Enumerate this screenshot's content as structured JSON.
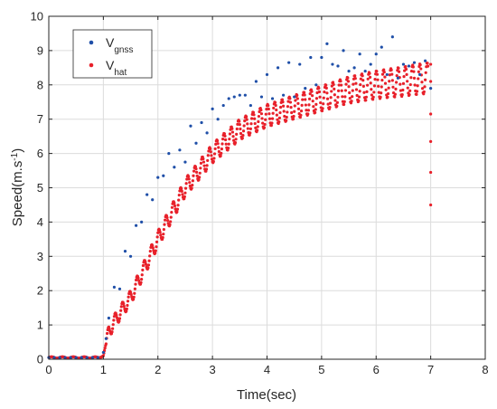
{
  "chart_data": {
    "type": "scatter",
    "title": "",
    "xlabel": "Time(sec)",
    "ylabel": {
      "base": "Speed(m.s",
      "sup": "-1",
      "close": ")"
    },
    "xlim": [
      0,
      8
    ],
    "ylim": [
      0,
      10
    ],
    "xticks": [
      "0",
      "1",
      "2",
      "3",
      "4",
      "5",
      "6",
      "7",
      "8"
    ],
    "yticks": [
      "0",
      "1",
      "2",
      "3",
      "4",
      "5",
      "6",
      "7",
      "8",
      "9",
      "10"
    ],
    "grid": true,
    "legend_position": "top-left",
    "series": [
      {
        "name": "V_gnss",
        "legend_main": "V",
        "legend_sub": "gnss",
        "color": "#1f4fa8",
        "x": [
          0.0,
          0.1,
          0.2,
          0.3,
          0.4,
          0.5,
          0.6,
          0.7,
          0.8,
          0.9,
          1.0,
          1.05,
          1.1,
          1.2,
          1.3,
          1.4,
          1.5,
          1.6,
          1.7,
          1.8,
          1.9,
          2.0,
          2.1,
          2.2,
          2.3,
          2.4,
          2.5,
          2.6,
          2.7,
          2.8,
          2.9,
          3.0,
          3.1,
          3.2,
          3.3,
          3.4,
          3.5,
          3.6,
          3.7,
          3.8,
          3.9,
          4.0,
          4.1,
          4.2,
          4.3,
          4.4,
          4.5,
          4.6,
          4.7,
          4.8,
          4.9,
          5.0,
          5.1,
          5.2,
          5.3,
          5.4,
          5.5,
          5.6,
          5.7,
          5.8,
          5.9,
          6.0,
          6.1,
          6.2,
          6.3,
          6.4,
          6.5,
          6.6,
          6.7,
          6.8,
          6.9,
          7.0
        ],
        "y": [
          0.05,
          0.05,
          0.05,
          0.05,
          0.05,
          0.05,
          0.05,
          0.05,
          0.05,
          0.05,
          0.2,
          0.6,
          1.2,
          2.1,
          2.05,
          3.15,
          3.0,
          3.9,
          4.0,
          4.8,
          4.65,
          5.3,
          5.35,
          6.0,
          5.6,
          6.1,
          5.75,
          6.8,
          6.3,
          6.9,
          6.6,
          7.3,
          7.0,
          7.4,
          7.6,
          7.65,
          7.7,
          7.7,
          7.4,
          8.1,
          7.65,
          8.3,
          7.6,
          8.5,
          7.7,
          8.65,
          7.65,
          8.6,
          7.9,
          8.8,
          8.0,
          8.8,
          9.2,
          8.6,
          8.55,
          9.0,
          8.4,
          8.5,
          8.9,
          8.4,
          8.6,
          8.9,
          9.1,
          8.3,
          9.4,
          8.2,
          8.6,
          8.55,
          8.65,
          8.3,
          8.7,
          7.9
        ]
      },
      {
        "name": "V_hat",
        "legend_main": "V",
        "legend_sub": "hat",
        "color": "#e8202a",
        "base_curve": {
          "x": [
            0.0,
            0.9,
            1.0,
            1.1,
            1.2,
            1.5,
            2.0,
            2.5,
            3.0,
            3.5,
            4.0,
            4.5,
            5.0,
            5.5,
            6.0,
            6.5,
            6.95
          ],
          "y": [
            0.05,
            0.05,
            0.1,
            0.8,
            1.1,
            1.8,
            3.5,
            5.0,
            6.0,
            6.7,
            7.1,
            7.35,
            7.6,
            7.85,
            8.0,
            8.1,
            8.2
          ]
        },
        "oscillation": {
          "period_sec": 0.133,
          "amplitude_start": 0.2,
          "amplitude_end": 0.45
        },
        "tail": {
          "x": [
            7.0,
            7.0,
            7.0,
            7.0,
            7.0,
            7.0
          ],
          "y": [
            8.6,
            8.1,
            7.15,
            6.35,
            5.45,
            4.5
          ]
        }
      }
    ]
  }
}
